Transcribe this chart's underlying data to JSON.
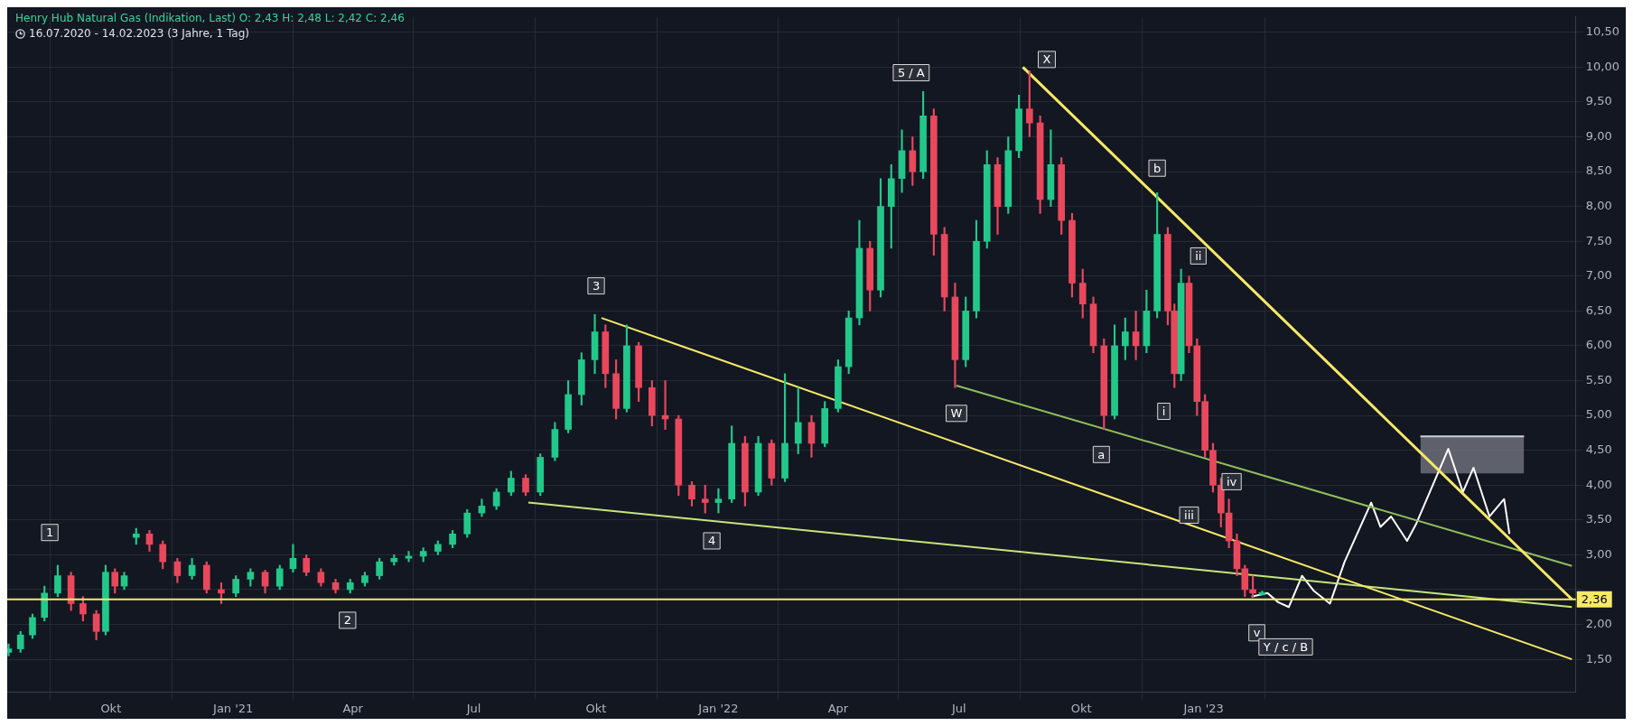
{
  "chart_data": {
    "type": "candlestick",
    "title": "Henry Hub Natural Gas (Indikation, Last)  O: 2,43  H: 2,48  L: 2,42  C: 2,46",
    "subtitle": "16.07.2020 - 14.02.2023  (3 Jahre, 1 Tag)",
    "x": [
      "2020-07-16",
      "2020-07-25",
      "2020-08-03",
      "2020-08-12",
      "2020-08-22",
      "2020-09-01",
      "2020-09-10",
      "2020-09-20",
      "2020-09-27",
      "2020-10-04",
      "2020-10-11",
      "2020-10-20",
      "2020-10-30",
      "2020-11-09",
      "2020-11-20",
      "2020-12-01",
      "2020-12-12",
      "2020-12-23",
      "2021-01-03",
      "2021-01-14",
      "2021-01-25",
      "2021-02-05",
      "2021-02-15",
      "2021-02-25",
      "2021-03-08",
      "2021-03-19",
      "2021-03-30",
      "2021-04-10",
      "2021-04-21",
      "2021-05-02",
      "2021-05-13",
      "2021-05-24",
      "2021-06-04",
      "2021-06-15",
      "2021-06-26",
      "2021-07-07",
      "2021-07-18",
      "2021-07-29",
      "2021-08-09",
      "2021-08-20",
      "2021-08-31",
      "2021-09-10",
      "2021-09-20",
      "2021-09-30",
      "2021-10-08",
      "2021-10-16",
      "2021-10-24",
      "2021-11-02",
      "2021-11-12",
      "2021-11-22",
      "2021-12-02",
      "2021-12-12",
      "2021-12-22",
      "2022-01-01",
      "2022-01-11",
      "2022-01-21",
      "2022-01-31",
      "2022-02-10",
      "2022-02-20",
      "2022-03-02",
      "2022-03-12",
      "2022-03-22",
      "2022-04-01",
      "2022-04-09",
      "2022-04-17",
      "2022-04-25",
      "2022-05-03",
      "2022-05-11",
      "2022-05-19",
      "2022-05-27",
      "2022-06-04",
      "2022-06-12",
      "2022-06-20",
      "2022-06-28",
      "2022-07-06",
      "2022-07-14",
      "2022-07-22",
      "2022-07-30",
      "2022-08-07",
      "2022-08-15",
      "2022-08-23",
      "2022-08-31",
      "2022-09-08",
      "2022-09-16",
      "2022-09-24",
      "2022-10-02",
      "2022-10-10",
      "2022-10-18",
      "2022-10-26",
      "2022-11-03",
      "2022-11-11",
      "2022-11-19",
      "2022-11-27",
      "2022-12-05",
      "2022-12-10",
      "2022-12-15",
      "2022-12-21",
      "2022-12-27",
      "2023-01-02",
      "2023-01-08",
      "2023-01-14",
      "2023-01-20",
      "2023-01-26",
      "2023-02-01",
      "2023-02-07",
      "2023-02-14"
    ],
    "ohlc": [
      [
        1.6,
        1.72,
        1.55,
        1.65
      ],
      [
        1.65,
        1.9,
        1.6,
        1.85
      ],
      [
        1.85,
        2.15,
        1.8,
        2.1
      ],
      [
        2.1,
        2.55,
        2.05,
        2.45
      ],
      [
        2.45,
        2.85,
        2.4,
        2.7
      ],
      [
        2.7,
        2.75,
        2.2,
        2.3
      ],
      [
        2.3,
        2.4,
        2.05,
        2.15
      ],
      [
        2.15,
        2.2,
        1.78,
        1.9
      ],
      [
        1.9,
        2.85,
        1.85,
        2.75
      ],
      [
        2.75,
        2.8,
        2.45,
        2.55
      ],
      [
        2.55,
        2.75,
        2.5,
        2.7
      ],
      [
        3.25,
        3.38,
        3.15,
        3.3
      ],
      [
        3.3,
        3.35,
        3.05,
        3.15
      ],
      [
        3.15,
        3.2,
        2.8,
        2.9
      ],
      [
        2.9,
        2.95,
        2.6,
        2.7
      ],
      [
        2.7,
        2.95,
        2.65,
        2.85
      ],
      [
        2.85,
        2.9,
        2.45,
        2.5
      ],
      [
        2.5,
        2.6,
        2.3,
        2.45
      ],
      [
        2.45,
        2.7,
        2.4,
        2.65
      ],
      [
        2.65,
        2.8,
        2.55,
        2.75
      ],
      [
        2.75,
        2.78,
        2.45,
        2.55
      ],
      [
        2.55,
        2.85,
        2.5,
        2.8
      ],
      [
        2.8,
        3.15,
        2.75,
        2.95
      ],
      [
        2.95,
        3.0,
        2.7,
        2.75
      ],
      [
        2.75,
        2.8,
        2.55,
        2.6
      ],
      [
        2.6,
        2.65,
        2.45,
        2.5
      ],
      [
        2.5,
        2.65,
        2.45,
        2.6
      ],
      [
        2.6,
        2.75,
        2.55,
        2.7
      ],
      [
        2.7,
        2.95,
        2.65,
        2.9
      ],
      [
        2.9,
        3.0,
        2.85,
        2.95
      ],
      [
        2.95,
        3.05,
        2.9,
        2.98
      ],
      [
        2.98,
        3.1,
        2.9,
        3.05
      ],
      [
        3.05,
        3.2,
        3.0,
        3.15
      ],
      [
        3.15,
        3.35,
        3.1,
        3.3
      ],
      [
        3.3,
        3.65,
        3.25,
        3.6
      ],
      [
        3.6,
        3.8,
        3.55,
        3.7
      ],
      [
        3.7,
        3.95,
        3.65,
        3.9
      ],
      [
        3.9,
        4.2,
        3.85,
        4.1
      ],
      [
        4.1,
        4.15,
        3.85,
        3.9
      ],
      [
        3.9,
        4.45,
        3.85,
        4.4
      ],
      [
        4.4,
        4.9,
        4.35,
        4.8
      ],
      [
        4.8,
        5.5,
        4.75,
        5.3
      ],
      [
        5.3,
        5.9,
        5.15,
        5.8
      ],
      [
        5.8,
        6.45,
        5.6,
        6.2
      ],
      [
        6.2,
        6.3,
        5.4,
        5.6
      ],
      [
        5.6,
        5.8,
        4.95,
        5.1
      ],
      [
        5.1,
        6.3,
        5.05,
        6.0
      ],
      [
        6.0,
        6.05,
        5.2,
        5.4
      ],
      [
        5.4,
        5.5,
        4.85,
        5.0
      ],
      [
        5.0,
        5.5,
        4.8,
        4.95
      ],
      [
        4.95,
        5.0,
        3.85,
        4.0
      ],
      [
        4.0,
        4.05,
        3.7,
        3.8
      ],
      [
        3.8,
        4.0,
        3.6,
        3.75
      ],
      [
        3.75,
        3.95,
        3.6,
        3.8
      ],
      [
        3.8,
        4.85,
        3.75,
        4.6
      ],
      [
        4.6,
        4.7,
        3.7,
        3.9
      ],
      [
        3.9,
        4.7,
        3.85,
        4.6
      ],
      [
        4.6,
        4.65,
        4.0,
        4.1
      ],
      [
        4.1,
        5.6,
        4.05,
        4.6
      ],
      [
        4.6,
        5.4,
        4.45,
        4.9
      ],
      [
        4.9,
        5.0,
        4.4,
        4.6
      ],
      [
        4.6,
        5.2,
        4.55,
        5.1
      ],
      [
        5.1,
        5.8,
        5.05,
        5.7
      ],
      [
        5.7,
        6.5,
        5.6,
        6.4
      ],
      [
        6.4,
        7.8,
        6.3,
        7.4
      ],
      [
        7.4,
        7.5,
        6.5,
        6.8
      ],
      [
        6.8,
        8.4,
        6.7,
        8.0
      ],
      [
        8.0,
        8.6,
        7.4,
        8.4
      ],
      [
        8.4,
        9.1,
        8.2,
        8.8
      ],
      [
        8.8,
        9.0,
        8.3,
        8.5
      ],
      [
        8.5,
        9.65,
        8.4,
        9.3
      ],
      [
        9.3,
        9.4,
        7.3,
        7.6
      ],
      [
        7.6,
        7.7,
        6.5,
        6.7
      ],
      [
        6.7,
        6.9,
        5.4,
        5.8
      ],
      [
        5.8,
        6.7,
        5.7,
        6.5
      ],
      [
        6.5,
        7.8,
        6.4,
        7.5
      ],
      [
        7.5,
        8.8,
        7.4,
        8.6
      ],
      [
        8.6,
        8.7,
        7.6,
        8.0
      ],
      [
        8.0,
        9.0,
        7.9,
        8.8
      ],
      [
        8.8,
        9.6,
        8.7,
        9.4
      ],
      [
        9.4,
        9.95,
        9.0,
        9.2
      ],
      [
        9.2,
        9.3,
        7.9,
        8.1
      ],
      [
        8.1,
        9.1,
        8.0,
        8.6
      ],
      [
        8.6,
        8.7,
        7.6,
        7.8
      ],
      [
        7.8,
        7.9,
        6.7,
        6.9
      ],
      [
        6.9,
        7.1,
        6.4,
        6.6
      ],
      [
        6.6,
        6.7,
        5.9,
        6.0
      ],
      [
        6.0,
        6.1,
        4.8,
        5.0
      ],
      [
        5.0,
        6.3,
        4.95,
        6.0
      ],
      [
        6.0,
        6.4,
        5.8,
        6.2
      ],
      [
        6.2,
        6.5,
        5.8,
        6.0
      ],
      [
        6.0,
        6.8,
        5.9,
        6.5
      ],
      [
        6.5,
        8.2,
        6.4,
        7.6
      ],
      [
        7.6,
        7.7,
        6.3,
        6.5
      ],
      [
        6.5,
        6.6,
        5.4,
        5.6
      ],
      [
        5.6,
        7.1,
        5.5,
        6.9
      ],
      [
        6.9,
        7.0,
        5.9,
        6.0
      ],
      [
        6.0,
        6.1,
        5.0,
        5.2
      ],
      [
        5.2,
        5.3,
        4.4,
        4.5
      ],
      [
        4.5,
        4.6,
        3.9,
        4.0
      ],
      [
        4.0,
        4.1,
        3.4,
        3.6
      ],
      [
        3.6,
        3.8,
        3.1,
        3.2
      ],
      [
        3.2,
        3.3,
        2.7,
        2.8
      ],
      [
        2.8,
        2.85,
        2.4,
        2.5
      ],
      [
        2.5,
        2.7,
        2.4,
        2.45
      ],
      [
        2.43,
        2.48,
        2.42,
        2.46
      ]
    ],
    "series": [
      {
        "type": "line",
        "color": "#f7e967",
        "x": [
          "2021-10-05",
          "2023-10-05"
        ],
        "values": [
          6.4,
          1.5
        ]
      },
      {
        "type": "line",
        "color": "#f7e967",
        "x": [
          "2022-08-18",
          "2023-10-05"
        ],
        "values": [
          10.0,
          2.36
        ]
      },
      {
        "type": "line",
        "color": "#c5e67a",
        "x": [
          "2021-08-11",
          "2023-10-05"
        ],
        "values": [
          3.75,
          2.25
        ]
      },
      {
        "type": "line",
        "color": "#8fbf5a",
        "x": [
          "2022-06-29",
          "2023-10-05"
        ],
        "values": [
          5.43,
          2.84
        ]
      },
      {
        "type": "line",
        "color": "#ffffff",
        "x": [
          "2023-02-06",
          "2023-02-18",
          "2023-02-26",
          "2023-03-06",
          "2023-03-16",
          "2023-03-25",
          "2023-04-06",
          "2023-04-17",
          "2023-05-07",
          "2023-05-14",
          "2023-05-22",
          "2023-06-03",
          "2023-06-10",
          "2023-07-04",
          "2023-07-15",
          "2023-07-23",
          "2023-08-04",
          "2023-08-15",
          "2023-08-19"
        ],
        "values": [
          2.4,
          2.45,
          2.32,
          2.25,
          2.7,
          2.48,
          2.3,
          2.9,
          3.75,
          3.4,
          3.55,
          3.2,
          3.45,
          4.52,
          3.9,
          4.25,
          3.55,
          3.8,
          3.3
        ]
      },
      {
        "type": "line",
        "color": "#d0d0d0",
        "x": [
          "2023-06-13",
          "2023-08-30"
        ],
        "values": [
          4.7,
          4.7
        ],
        "lower": [
          4.17,
          4.17
        ],
        "upper": [
          4.7,
          4.7
        ]
      }
    ],
    "ref_lines": [
      {
        "axis": "y",
        "value": 2.36,
        "label": "2,36",
        "color": "#f7e967"
      }
    ],
    "annotations": [
      {
        "text": "1",
        "x": "2020-08-16",
        "y": 3.32
      },
      {
        "text": "2",
        "x": "2021-03-28",
        "y": 2.06
      },
      {
        "text": "3",
        "x": "2021-10-01",
        "y": 6.86
      },
      {
        "text": "4",
        "x": "2021-12-27",
        "y": 3.2
      },
      {
        "text": "5 / A",
        "x": "2022-05-26",
        "y": 9.92
      },
      {
        "text": "X",
        "x": "2022-09-05",
        "y": 10.11
      },
      {
        "text": "W",
        "x": "2022-06-29",
        "y": 5.03
      },
      {
        "text": "a",
        "x": "2022-10-16",
        "y": 4.44
      },
      {
        "text": "b",
        "x": "2022-11-27",
        "y": 8.55
      },
      {
        "text": "i",
        "x": "2022-12-02",
        "y": 5.06
      },
      {
        "text": "ii",
        "x": "2022-12-28",
        "y": 7.29
      },
      {
        "text": "iii",
        "x": "2022-12-21",
        "y": 3.57
      },
      {
        "text": "iv",
        "x": "2023-01-22",
        "y": 4.05
      },
      {
        "text": "v",
        "x": "2023-02-10",
        "y": 1.88
      },
      "Y / c / B"
    ],
    "xlim": [
      "2020-07-15",
      "2023-10-08"
    ],
    "xticks": [
      {
        "value": "2020-10-01",
        "label": "Okt"
      },
      {
        "value": "2021-01-01",
        "label": "Jan '21"
      },
      {
        "value": "2021-04-01",
        "label": "Apr"
      },
      {
        "value": "2021-07-01",
        "label": "Jul"
      },
      {
        "value": "2021-10-01",
        "label": "Okt"
      },
      {
        "value": "2022-01-01",
        "label": "Jan '22"
      },
      {
        "value": "2022-04-01",
        "label": "Apr"
      },
      {
        "value": "2022-07-01",
        "label": "Jul"
      },
      {
        "value": "2022-10-01",
        "label": "Okt"
      },
      {
        "value": "2023-01-01",
        "label": "Jan '23"
      }
    ],
    "ylim": [
      1.03,
      10.72
    ],
    "yticks": [
      {
        "value": 1.5,
        "label": "1,50"
      },
      {
        "value": 2,
        "label": "2,00"
      },
      {
        "value": 2.5,
        "label": null
      },
      {
        "value": 3,
        "label": "3,00"
      },
      {
        "value": 3.5,
        "label": "3,50"
      },
      {
        "value": 4,
        "label": "4,00"
      },
      {
        "value": 4.5,
        "label": "4,50"
      },
      {
        "value": 5,
        "label": "5,00"
      },
      {
        "value": 5.5,
        "label": "5,50"
      },
      {
        "value": 6,
        "label": "6,00"
      },
      {
        "value": 6.5,
        "label": "6,50"
      },
      {
        "value": 7,
        "label": "7,00"
      },
      {
        "value": 7.5,
        "label": "7,50"
      },
      {
        "value": 8,
        "label": "8,00"
      },
      {
        "value": 8.5,
        "label": "8,50"
      },
      {
        "value": 9,
        "label": "9,00"
      },
      {
        "value": 9.5,
        "label": "9,50"
      },
      {
        "value": 10,
        "label": "10,00"
      },
      {
        "value": 10.5,
        "label": "10,50"
      }
    ],
    "grid": true,
    "legend": false
  }
}
